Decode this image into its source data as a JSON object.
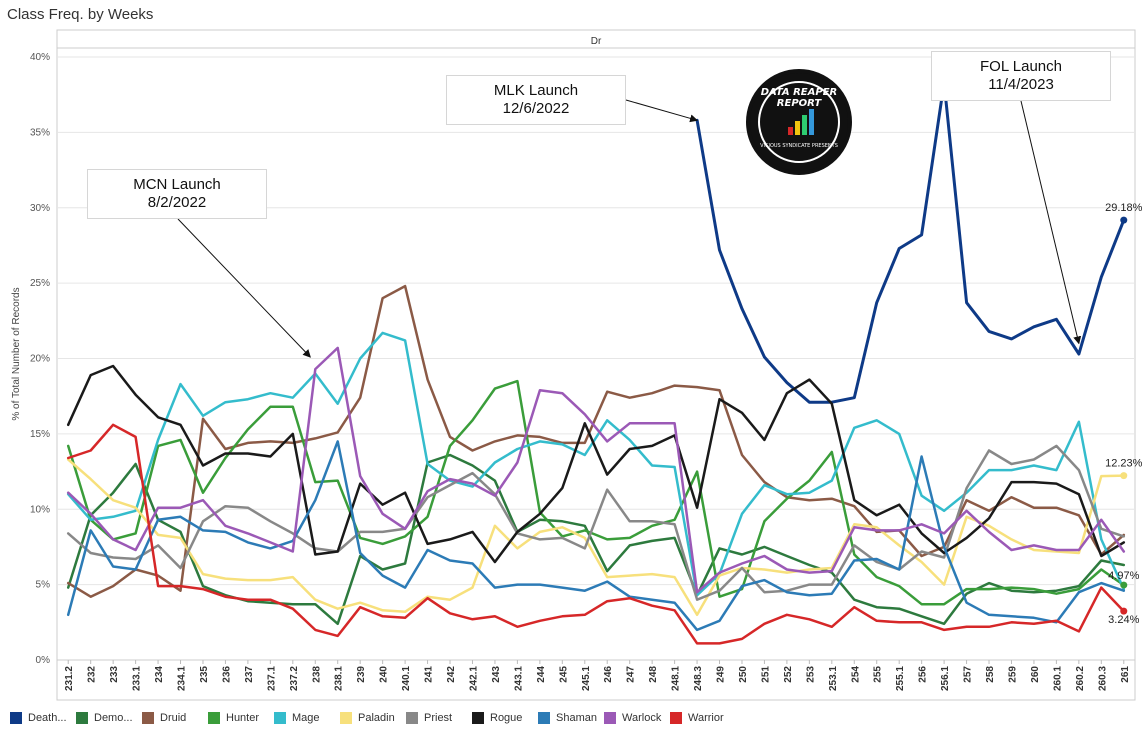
{
  "page": {
    "title": "Class Freq. by Weeks"
  },
  "chart_data": {
    "type": "line",
    "title": "Class Freq. by Weeks",
    "column_header": "Dr",
    "ylabel": "% of Total Number of Records",
    "xlabel": "",
    "ylim": [
      0,
      40
    ],
    "yticks": [
      "0%",
      "5%",
      "10%",
      "15%",
      "20%",
      "25%",
      "30%",
      "35%",
      "40%"
    ],
    "grid": true,
    "legend_position": "bottom",
    "categories": [
      "231.2",
      "232",
      "233",
      "233.1",
      "234",
      "234.1",
      "235",
      "236",
      "237",
      "237.1",
      "237.2",
      "238",
      "238.1",
      "239",
      "240",
      "240.1",
      "241",
      "242",
      "242.1",
      "243",
      "243.1",
      "244",
      "245",
      "245.1",
      "246",
      "247",
      "248",
      "248.1",
      "248.3",
      "249",
      "250",
      "251",
      "252",
      "253",
      "253.1",
      "254",
      "255",
      "255.1",
      "256",
      "256.1",
      "257",
      "258",
      "259",
      "260",
      "260.1",
      "260.2",
      "260.3",
      "261"
    ],
    "series": [
      {
        "name": "Death...",
        "color": "#0e3a87",
        "values": [
          null,
          null,
          null,
          null,
          null,
          null,
          null,
          null,
          null,
          null,
          null,
          null,
          null,
          null,
          null,
          null,
          null,
          null,
          null,
          null,
          null,
          null,
          null,
          null,
          null,
          null,
          null,
          null,
          35.8,
          27.2,
          23.3,
          20.1,
          18.4,
          17.1,
          17.1,
          17.4,
          23.7,
          27.3,
          28.2,
          38.3,
          23.7,
          21.8,
          21.3,
          22.1,
          22.6,
          20.3,
          25.4,
          29.18
        ]
      },
      {
        "name": "Demo...",
        "color": "#2d7a3e",
        "values": [
          4.8,
          9.6,
          11.1,
          13.0,
          9.3,
          8.5,
          4.9,
          4.3,
          3.9,
          3.8,
          3.7,
          3.7,
          2.4,
          6.9,
          6.0,
          6.4,
          13.1,
          13.6,
          12.9,
          11.9,
          8.5,
          9.3,
          9.2,
          8.9,
          5.9,
          7.6,
          7.9,
          8.1,
          4.3,
          7.4,
          7.0,
          7.5,
          6.9,
          6.3,
          5.8,
          4.0,
          3.5,
          3.4,
          2.9,
          2.4,
          4.4,
          5.1,
          4.6,
          4.5,
          4.6,
          4.9,
          6.6,
          6.3
        ]
      },
      {
        "name": "Druid",
        "color": "#8b5a46",
        "values": [
          5.1,
          4.2,
          4.9,
          6.0,
          5.6,
          4.6,
          16.0,
          14.0,
          14.4,
          14.5,
          14.4,
          14.7,
          15.1,
          17.4,
          24.0,
          24.8,
          18.6,
          14.8,
          13.9,
          14.5,
          14.9,
          14.8,
          14.4,
          14.4,
          17.8,
          17.4,
          17.7,
          18.2,
          18.1,
          17.9,
          13.6,
          11.8,
          10.8,
          10.6,
          10.7,
          10.2,
          8.5,
          8.6,
          6.9,
          7.5,
          10.6,
          9.9,
          10.8,
          10.1,
          10.1,
          9.6,
          7.0,
          8.3
        ]
      },
      {
        "name": "Hunter",
        "color": "#3a9d3a",
        "values": [
          14.2,
          9.3,
          8.0,
          8.4,
          14.2,
          14.6,
          11.1,
          13.4,
          15.3,
          16.8,
          16.8,
          11.8,
          11.9,
          8.1,
          7.7,
          8.2,
          9.5,
          14.2,
          15.9,
          18.0,
          18.5,
          9.8,
          8.2,
          8.6,
          8.0,
          8.1,
          8.9,
          9.3,
          12.5,
          4.2,
          4.7,
          9.2,
          10.7,
          11.9,
          13.8,
          7.0,
          5.5,
          4.9,
          3.7,
          3.7,
          4.7,
          4.7,
          4.8,
          4.7,
          4.4,
          4.7,
          6.0,
          4.97
        ]
      },
      {
        "name": "Mage",
        "color": "#34bccc",
        "values": [
          11.0,
          9.3,
          9.5,
          9.9,
          14.6,
          18.3,
          16.2,
          17.1,
          17.3,
          17.7,
          17.4,
          19.0,
          17.0,
          20.0,
          21.7,
          21.2,
          13.0,
          11.9,
          11.5,
          13.1,
          14.0,
          14.5,
          14.3,
          13.6,
          15.9,
          14.6,
          12.9,
          12.8,
          4.3,
          5.7,
          9.7,
          11.6,
          11.0,
          11.1,
          11.9,
          15.4,
          15.9,
          15.0,
          10.9,
          9.9,
          11.1,
          12.6,
          12.6,
          12.9,
          12.6,
          15.8,
          8.0,
          4.7
        ]
      },
      {
        "name": "Paladin",
        "color": "#f7e07c",
        "values": [
          13.3,
          12.0,
          10.6,
          10.1,
          8.3,
          8.1,
          5.7,
          5.4,
          5.3,
          5.3,
          5.5,
          4.0,
          3.4,
          3.8,
          3.3,
          3.2,
          4.2,
          4.0,
          4.8,
          8.9,
          7.4,
          8.5,
          8.8,
          8.1,
          5.5,
          5.6,
          5.7,
          5.5,
          3.0,
          5.6,
          6.1,
          6.0,
          5.8,
          6.0,
          6.1,
          9.0,
          8.8,
          7.6,
          6.5,
          5.0,
          9.5,
          8.9,
          8.0,
          7.3,
          7.2,
          7.1,
          12.2,
          12.23
        ]
      },
      {
        "name": "Priest",
        "color": "#888888",
        "values": [
          8.4,
          7.1,
          6.8,
          6.7,
          7.6,
          6.1,
          9.2,
          10.2,
          10.1,
          9.2,
          8.4,
          7.4,
          7.2,
          8.5,
          8.5,
          8.7,
          10.8,
          11.6,
          12.4,
          11.0,
          8.4,
          8.0,
          8.1,
          7.4,
          11.3,
          9.2,
          9.2,
          9.0,
          4.0,
          4.6,
          6.1,
          4.5,
          4.6,
          5.0,
          5.0,
          7.6,
          6.5,
          6.0,
          7.2,
          6.8,
          11.4,
          13.9,
          13.0,
          13.3,
          14.2,
          12.6,
          8.7,
          8.2
        ]
      },
      {
        "name": "Rogue",
        "color": "#1a1a1a",
        "values": [
          15.6,
          18.9,
          19.5,
          17.6,
          16.1,
          15.6,
          12.9,
          13.7,
          13.7,
          13.5,
          15.0,
          7.0,
          7.2,
          11.7,
          10.3,
          11.1,
          7.7,
          8.0,
          8.5,
          6.5,
          8.5,
          9.7,
          11.4,
          15.7,
          12.3,
          14.0,
          14.2,
          14.9,
          10.1,
          17.3,
          16.4,
          14.6,
          17.7,
          18.6,
          17.0,
          10.6,
          9.6,
          10.3,
          8.4,
          7.1,
          8.1,
          9.4,
          11.8,
          11.8,
          11.7,
          11.0,
          6.9,
          7.8
        ]
      },
      {
        "name": "Shaman",
        "color": "#2c7bb6",
        "values": [
          3.0,
          8.6,
          6.2,
          6.0,
          9.3,
          9.5,
          8.6,
          8.5,
          7.8,
          7.4,
          7.9,
          10.6,
          14.5,
          7.1,
          5.6,
          4.8,
          7.3,
          6.6,
          6.4,
          4.8,
          5.0,
          5.0,
          4.8,
          4.6,
          5.2,
          4.2,
          4.0,
          3.8,
          2.0,
          2.6,
          4.9,
          5.3,
          4.5,
          4.3,
          4.4,
          6.6,
          6.7,
          6.0,
          13.5,
          7.5,
          3.8,
          3.0,
          2.9,
          2.8,
          2.5,
          4.5,
          5.1,
          4.6
        ]
      },
      {
        "name": "Warlock",
        "color": "#9b59b6",
        "values": [
          11.1,
          9.7,
          8.0,
          7.3,
          10.1,
          10.1,
          10.6,
          8.9,
          8.4,
          7.8,
          7.2,
          19.3,
          20.7,
          12.2,
          9.7,
          8.7,
          11.2,
          12.0,
          11.7,
          10.9,
          13.1,
          17.9,
          17.7,
          16.3,
          14.5,
          15.7,
          15.7,
          15.7,
          4.5,
          5.8,
          6.4,
          6.9,
          6.0,
          5.8,
          5.9,
          8.8,
          8.6,
          8.6,
          9.0,
          8.4,
          9.9,
          8.5,
          7.3,
          7.6,
          7.3,
          7.3,
          9.3,
          7.2
        ]
      },
      {
        "name": "Warrior",
        "color": "#d62728",
        "values": [
          13.4,
          13.9,
          15.6,
          14.8,
          4.9,
          4.9,
          4.7,
          4.2,
          4.0,
          4.0,
          3.4,
          2.0,
          1.6,
          3.5,
          2.9,
          2.8,
          4.1,
          3.1,
          2.7,
          2.9,
          2.2,
          2.6,
          2.9,
          3.0,
          3.9,
          4.1,
          3.6,
          3.3,
          1.1,
          1.1,
          1.4,
          2.4,
          3.0,
          2.7,
          2.2,
          3.5,
          2.6,
          2.5,
          2.5,
          2.0,
          2.2,
          2.2,
          2.5,
          2.4,
          2.6,
          1.9,
          4.8,
          3.24
        ]
      }
    ],
    "end_labels": [
      {
        "series": "Death...",
        "text": "29.18%"
      },
      {
        "series": "Paladin",
        "text": "12.23%"
      },
      {
        "series": "Hunter",
        "text": "4.97%"
      },
      {
        "series": "Warrior",
        "text": "3.24%"
      }
    ],
    "annotations": [
      {
        "title": "MCN Launch",
        "date": "8/2/2022",
        "target_category": "238",
        "target_value": 20.1
      },
      {
        "title": "MLK Launch",
        "date": "12/6/2022",
        "target_category": "248.3",
        "target_value": 35.8
      },
      {
        "title": "FOL Launch",
        "date": "11/4/2023",
        "target_category": "260.2",
        "target_value": 21.0
      }
    ]
  },
  "logo": {
    "top_text": "DATA REAPER REPORT",
    "bottom_text": "VICIOUS SYNDICATE PRESENTS"
  }
}
